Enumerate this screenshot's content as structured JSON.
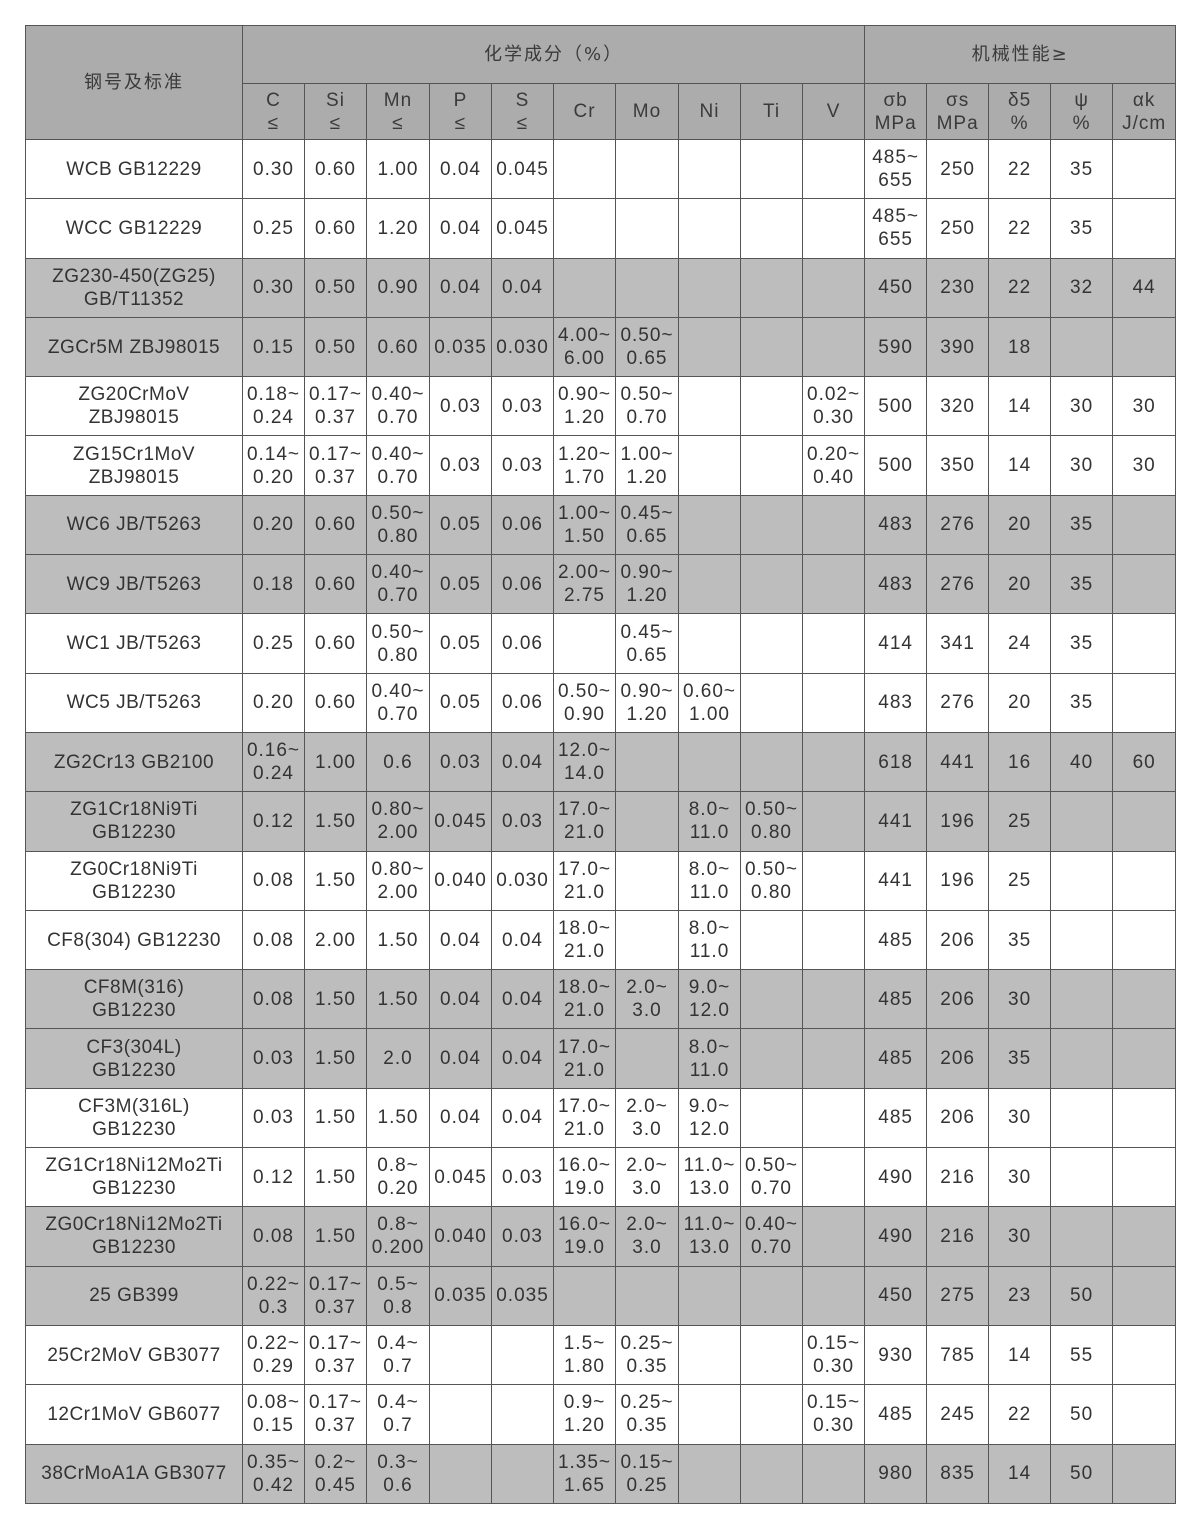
{
  "header": {
    "grade_standard": "钢号及标准",
    "chemical_composition": "化学成分（%）",
    "mechanical_properties": "机械性能≥",
    "columns": [
      "C\n≤",
      "Si\n≤",
      "Mn\n≤",
      "P\n≤",
      "S\n≤",
      "Cr",
      "Mo",
      "Ni",
      "Ti",
      "V",
      "σb\nMPa",
      "σs\nMPa",
      "δ5\n%",
      "ψ\n%",
      "αk\nJ/cm"
    ]
  },
  "row_shading": {
    "white": "#ffffff",
    "gray": "#bdbdbd",
    "header": "#acacac"
  },
  "rows": [
    {
      "shade": "white",
      "cells": [
        "WCB GB12229",
        "0.30",
        "0.60",
        "1.00",
        "0.04",
        "0.045",
        "",
        "",
        "",
        "",
        "",
        "485~\n655",
        "250",
        "22",
        "35",
        ""
      ]
    },
    {
      "shade": "white",
      "cells": [
        "WCC GB12229",
        "0.25",
        "0.60",
        "1.20",
        "0.04",
        "0.045",
        "",
        "",
        "",
        "",
        "",
        "485~\n655",
        "250",
        "22",
        "35",
        ""
      ]
    },
    {
      "shade": "gray",
      "cells": [
        "ZG230-450(ZG25)\nGB/T11352",
        "0.30",
        "0.50",
        "0.90",
        "0.04",
        "0.04",
        "",
        "",
        "",
        "",
        "",
        "450",
        "230",
        "22",
        "32",
        "44"
      ]
    },
    {
      "shade": "gray",
      "cells": [
        "ZGCr5M ZBJ98015",
        "0.15",
        "0.50",
        "0.60",
        "0.035",
        "0.030",
        "4.00~\n6.00",
        "0.50~\n0.65",
        "",
        "",
        "",
        "590",
        "390",
        "18",
        "",
        ""
      ]
    },
    {
      "shade": "white",
      "cells": [
        "ZG20CrMoV\nZBJ98015",
        "0.18~\n0.24",
        "0.17~\n0.37",
        "0.40~\n0.70",
        "0.03",
        "0.03",
        "0.90~\n1.20",
        "0.50~\n0.70",
        "",
        "",
        "0.02~\n0.30",
        "500",
        "320",
        "14",
        "30",
        "30"
      ]
    },
    {
      "shade": "white",
      "cells": [
        "ZG15Cr1MoV\nZBJ98015",
        "0.14~\n0.20",
        "0.17~\n0.37",
        "0.40~\n0.70",
        "0.03",
        "0.03",
        "1.20~\n1.70",
        "1.00~\n1.20",
        "",
        "",
        "0.20~\n0.40",
        "500",
        "350",
        "14",
        "30",
        "30"
      ]
    },
    {
      "shade": "gray",
      "cells": [
        "WC6 JB/T5263",
        "0.20",
        "0.60",
        "0.50~\n0.80",
        "0.05",
        "0.06",
        "1.00~\n1.50",
        "0.45~\n0.65",
        "",
        "",
        "",
        "483",
        "276",
        "20",
        "35",
        ""
      ]
    },
    {
      "shade": "gray",
      "cells": [
        "WC9 JB/T5263",
        "0.18",
        "0.60",
        "0.40~\n0.70",
        "0.05",
        "0.06",
        "2.00~\n2.75",
        "0.90~\n1.20",
        "",
        "",
        "",
        "483",
        "276",
        "20",
        "35",
        ""
      ]
    },
    {
      "shade": "white",
      "cells": [
        "WC1 JB/T5263",
        "0.25",
        "0.60",
        "0.50~\n0.80",
        "0.05",
        "0.06",
        "",
        "0.45~\n0.65",
        "",
        "",
        "",
        "414",
        "341",
        "24",
        "35",
        ""
      ]
    },
    {
      "shade": "white",
      "cells": [
        "WC5 JB/T5263",
        "0.20",
        "0.60",
        "0.40~\n0.70",
        "0.05",
        "0.06",
        "0.50~\n0.90",
        "0.90~\n1.20",
        "0.60~\n1.00",
        "",
        "",
        "483",
        "276",
        "20",
        "35",
        ""
      ]
    },
    {
      "shade": "gray",
      "cells": [
        "ZG2Cr13 GB2100",
        "0.16~\n0.24",
        "1.00",
        "0.6",
        "0.03",
        "0.04",
        "12.0~\n14.0",
        "",
        "",
        "",
        "",
        "618",
        "441",
        "16",
        "40",
        "60"
      ]
    },
    {
      "shade": "gray",
      "cells": [
        "ZG1Cr18Ni9Ti\nGB12230",
        "0.12",
        "1.50",
        "0.80~\n2.00",
        "0.045",
        "0.03",
        "17.0~\n21.0",
        "",
        "8.0~\n11.0",
        "0.50~\n0.80",
        "",
        "441",
        "196",
        "25",
        "",
        ""
      ]
    },
    {
      "shade": "white",
      "cells": [
        "ZG0Cr18Ni9Ti\nGB12230",
        "0.08",
        "1.50",
        "0.80~\n2.00",
        "0.040",
        "0.030",
        "17.0~\n21.0",
        "",
        "8.0~\n11.0",
        "0.50~\n0.80",
        "",
        "441",
        "196",
        "25",
        "",
        ""
      ]
    },
    {
      "shade": "white",
      "cells": [
        "CF8(304) GB12230",
        "0.08",
        "2.00",
        "1.50",
        "0.04",
        "0.04",
        "18.0~\n21.0",
        "",
        "8.0~\n11.0",
        "",
        "",
        "485",
        "206",
        "35",
        "",
        ""
      ]
    },
    {
      "shade": "gray",
      "cells": [
        "CF8M(316)\nGB12230",
        "0.08",
        "1.50",
        "1.50",
        "0.04",
        "0.04",
        "18.0~\n21.0",
        "2.0~\n3.0",
        "9.0~\n12.0",
        "",
        "",
        "485",
        "206",
        "30",
        "",
        ""
      ]
    },
    {
      "shade": "gray",
      "cells": [
        "CF3(304L)\nGB12230",
        "0.03",
        "1.50",
        "2.0",
        "0.04",
        "0.04",
        "17.0~\n21.0",
        "",
        "8.0~\n11.0",
        "",
        "",
        "485",
        "206",
        "35",
        "",
        ""
      ]
    },
    {
      "shade": "white",
      "cells": [
        "CF3M(316L)\nGB12230",
        "0.03",
        "1.50",
        "1.50",
        "0.04",
        "0.04",
        "17.0~\n21.0",
        "2.0~\n3.0",
        "9.0~\n12.0",
        "",
        "",
        "485",
        "206",
        "30",
        "",
        ""
      ]
    },
    {
      "shade": "white",
      "cells": [
        "ZG1Cr18Ni12Mo2Ti\nGB12230",
        "0.12",
        "1.50",
        "0.8~\n0.20",
        "0.045",
        "0.03",
        "16.0~\n19.0",
        "2.0~\n3.0",
        "11.0~\n13.0",
        "0.50~\n0.70",
        "",
        "490",
        "216",
        "30",
        "",
        ""
      ]
    },
    {
      "shade": "gray",
      "cells": [
        "ZG0Cr18Ni12Mo2Ti\nGB12230",
        "0.08",
        "1.50",
        "0.8~\n0.200",
        "0.040",
        "0.03",
        "16.0~\n19.0",
        "2.0~\n3.0",
        "11.0~\n13.0",
        "0.40~\n0.70",
        "",
        "490",
        "216",
        "30",
        "",
        ""
      ]
    },
    {
      "shade": "gray",
      "cells": [
        "25 GB399",
        "0.22~\n0.3",
        "0.17~\n0.37",
        "0.5~\n0.8",
        "0.035",
        "0.035",
        "",
        "",
        "",
        "",
        "",
        "450",
        "275",
        "23",
        "50",
        ""
      ]
    },
    {
      "shade": "white",
      "cells": [
        "25Cr2MoV GB3077",
        "0.22~\n0.29",
        "0.17~\n0.37",
        "0.4~\n0.7",
        "",
        "",
        "1.5~\n1.80",
        "0.25~\n0.35",
        "",
        "",
        "0.15~\n0.30",
        "930",
        "785",
        "14",
        "55",
        ""
      ]
    },
    {
      "shade": "white",
      "cells": [
        "12Cr1MoV GB6077",
        "0.08~\n0.15",
        "0.17~\n0.37",
        "0.4~\n0.7",
        "",
        "",
        "0.9~\n1.20",
        "0.25~\n0.35",
        "",
        "",
        "0.15~\n0.30",
        "485",
        "245",
        "22",
        "50",
        ""
      ]
    },
    {
      "shade": "gray",
      "cells": [
        "38CrMoA1A GB3077",
        "0.35~\n0.42",
        "0.2~\n0.45",
        "0.3~\n0.6",
        "",
        "",
        "1.35~\n1.65",
        "0.15~\n0.25",
        "",
        "",
        "",
        "980",
        "835",
        "14",
        "50",
        ""
      ]
    }
  ]
}
